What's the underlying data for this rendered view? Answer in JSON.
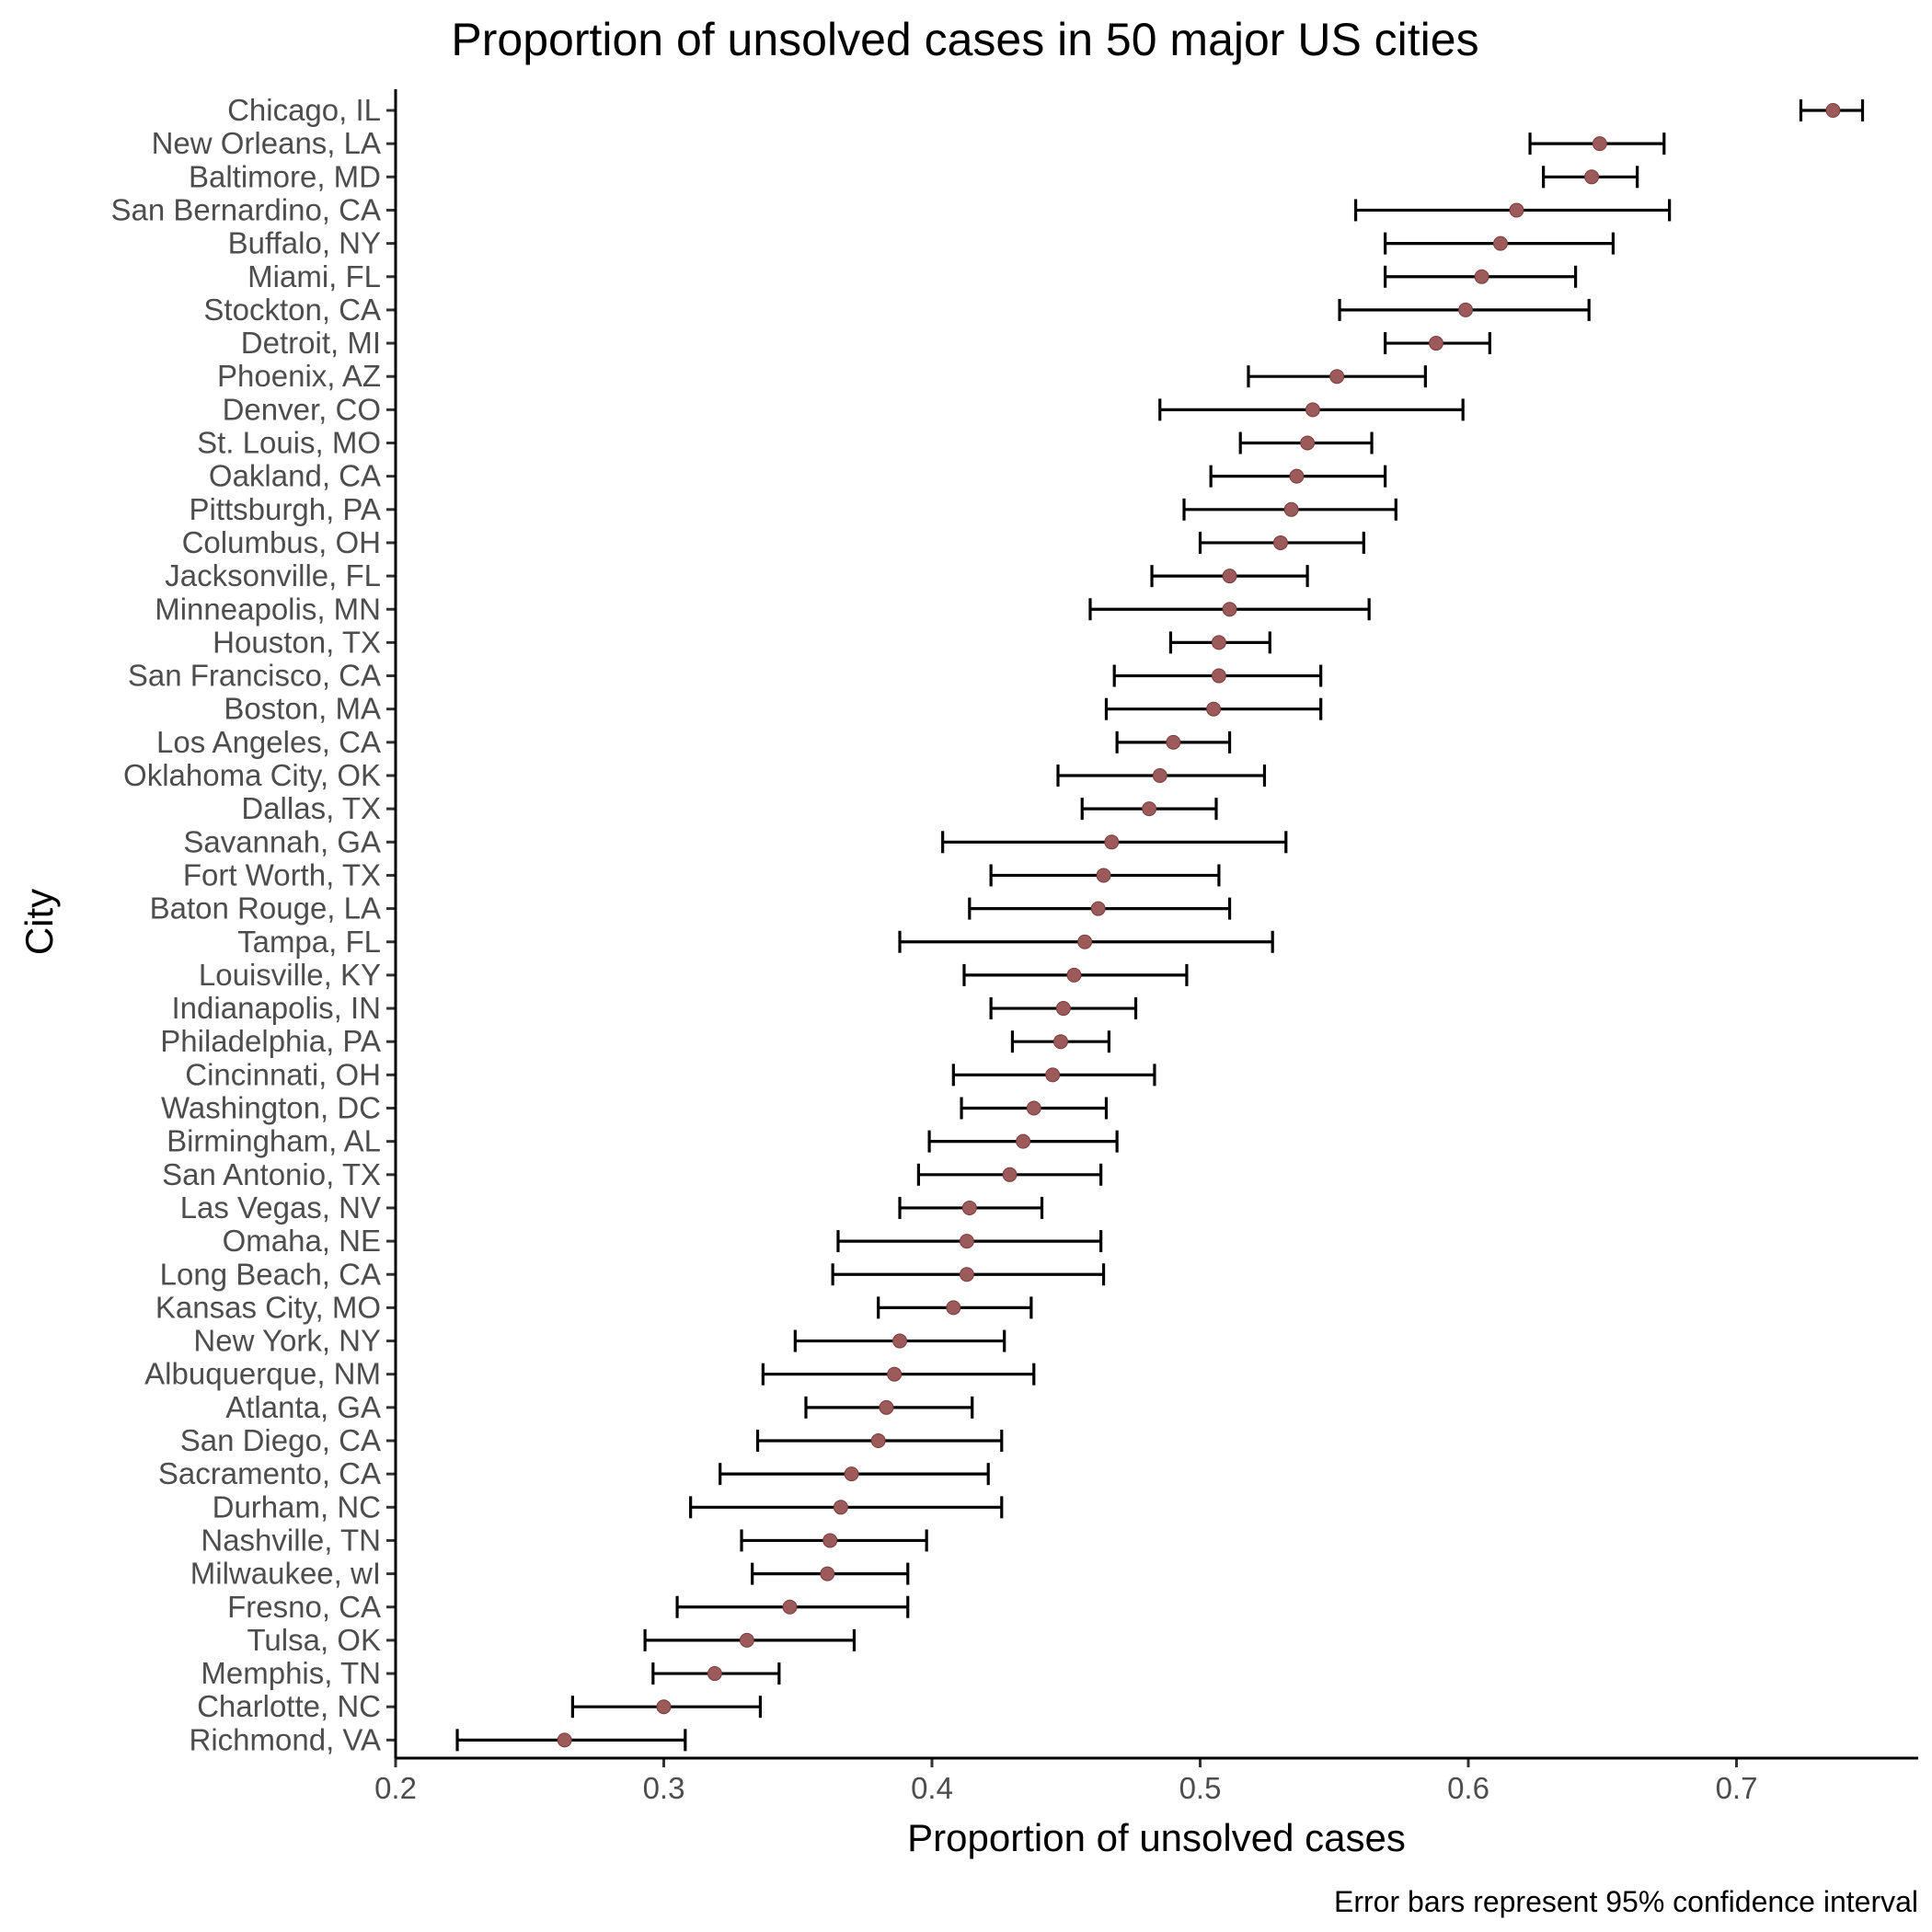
{
  "chart_data": {
    "type": "scatter",
    "title": "Proportion of unsolved cases in 50 major US cities",
    "xlabel": "Proportion of unsolved cases",
    "ylabel": "City",
    "caption": "Error bars represent 95% confidence interval",
    "xlim": [
      0.2,
      0.77
    ],
    "xticks": [
      0.2,
      0.3,
      0.4,
      0.5,
      0.6,
      0.7
    ],
    "grid": false,
    "legend": "none",
    "point_color": "#9d5a5a",
    "errorbar_color": "#000000",
    "points": [
      {
        "city": "Chicago, IL",
        "estimate": 0.736,
        "low": 0.724,
        "high": 0.747
      },
      {
        "city": "New Orleans, LA",
        "estimate": 0.649,
        "low": 0.623,
        "high": 0.673
      },
      {
        "city": "Baltimore, MD",
        "estimate": 0.646,
        "low": 0.628,
        "high": 0.663
      },
      {
        "city": "San Bernardino, CA",
        "estimate": 0.618,
        "low": 0.558,
        "high": 0.675
      },
      {
        "city": "Buffalo, NY",
        "estimate": 0.612,
        "low": 0.569,
        "high": 0.654
      },
      {
        "city": "Miami, FL",
        "estimate": 0.605,
        "low": 0.569,
        "high": 0.64
      },
      {
        "city": "Stockton, CA",
        "estimate": 0.599,
        "low": 0.552,
        "high": 0.645
      },
      {
        "city": "Detroit, MI",
        "estimate": 0.588,
        "low": 0.569,
        "high": 0.608
      },
      {
        "city": "Phoenix, AZ",
        "estimate": 0.551,
        "low": 0.518,
        "high": 0.584
      },
      {
        "city": "Denver, CO",
        "estimate": 0.542,
        "low": 0.485,
        "high": 0.598
      },
      {
        "city": "St. Louis, MO",
        "estimate": 0.54,
        "low": 0.515,
        "high": 0.564
      },
      {
        "city": "Oakland, CA",
        "estimate": 0.536,
        "low": 0.504,
        "high": 0.569
      },
      {
        "city": "Pittsburgh, PA",
        "estimate": 0.534,
        "low": 0.494,
        "high": 0.573
      },
      {
        "city": "Columbus, OH",
        "estimate": 0.53,
        "low": 0.5,
        "high": 0.561
      },
      {
        "city": "Jacksonville, FL",
        "estimate": 0.511,
        "low": 0.482,
        "high": 0.54
      },
      {
        "city": "Minneapolis, MN",
        "estimate": 0.511,
        "low": 0.459,
        "high": 0.563
      },
      {
        "city": "Houston, TX",
        "estimate": 0.507,
        "low": 0.489,
        "high": 0.526
      },
      {
        "city": "San Francisco, CA",
        "estimate": 0.507,
        "low": 0.468,
        "high": 0.545
      },
      {
        "city": "Boston, MA",
        "estimate": 0.505,
        "low": 0.465,
        "high": 0.545
      },
      {
        "city": "Los Angeles, CA",
        "estimate": 0.49,
        "low": 0.469,
        "high": 0.511
      },
      {
        "city": "Oklahoma City, OK",
        "estimate": 0.485,
        "low": 0.447,
        "high": 0.524
      },
      {
        "city": "Dallas, TX",
        "estimate": 0.481,
        "low": 0.456,
        "high": 0.506
      },
      {
        "city": "Savannah, GA",
        "estimate": 0.467,
        "low": 0.404,
        "high": 0.532
      },
      {
        "city": "Fort Worth, TX",
        "estimate": 0.464,
        "low": 0.422,
        "high": 0.507
      },
      {
        "city": "Baton Rouge, LA",
        "estimate": 0.462,
        "low": 0.414,
        "high": 0.511
      },
      {
        "city": "Tampa, FL",
        "estimate": 0.457,
        "low": 0.388,
        "high": 0.527
      },
      {
        "city": "Louisville, KY",
        "estimate": 0.453,
        "low": 0.412,
        "high": 0.495
      },
      {
        "city": "Indianapolis, IN",
        "estimate": 0.449,
        "low": 0.422,
        "high": 0.476
      },
      {
        "city": "Philadelphia, PA",
        "estimate": 0.448,
        "low": 0.43,
        "high": 0.466
      },
      {
        "city": "Cincinnati, OH",
        "estimate": 0.445,
        "low": 0.408,
        "high": 0.483
      },
      {
        "city": "Washington, DC",
        "estimate": 0.438,
        "low": 0.411,
        "high": 0.465
      },
      {
        "city": "Birmingham, AL",
        "estimate": 0.434,
        "low": 0.399,
        "high": 0.469
      },
      {
        "city": "San Antonio, TX",
        "estimate": 0.429,
        "low": 0.395,
        "high": 0.463
      },
      {
        "city": "Las Vegas, NV",
        "estimate": 0.414,
        "low": 0.388,
        "high": 0.441
      },
      {
        "city": "Omaha, NE",
        "estimate": 0.413,
        "low": 0.365,
        "high": 0.463
      },
      {
        "city": "Long Beach, CA",
        "estimate": 0.413,
        "low": 0.363,
        "high": 0.464
      },
      {
        "city": "Kansas City, MO",
        "estimate": 0.408,
        "low": 0.38,
        "high": 0.437
      },
      {
        "city": "New York, NY",
        "estimate": 0.388,
        "low": 0.349,
        "high": 0.427
      },
      {
        "city": "Albuquerque, NM",
        "estimate": 0.386,
        "low": 0.337,
        "high": 0.438
      },
      {
        "city": "Atlanta, GA",
        "estimate": 0.383,
        "low": 0.353,
        "high": 0.415
      },
      {
        "city": "San Diego, CA",
        "estimate": 0.38,
        "low": 0.335,
        "high": 0.426
      },
      {
        "city": "Sacramento, CA",
        "estimate": 0.37,
        "low": 0.321,
        "high": 0.421
      },
      {
        "city": "Durham, NC",
        "estimate": 0.366,
        "low": 0.31,
        "high": 0.426
      },
      {
        "city": "Nashville, TN",
        "estimate": 0.362,
        "low": 0.329,
        "high": 0.398
      },
      {
        "city": "Milwaukee, wI",
        "estimate": 0.361,
        "low": 0.333,
        "high": 0.391
      },
      {
        "city": "Fresno, CA",
        "estimate": 0.347,
        "low": 0.305,
        "high": 0.391
      },
      {
        "city": "Tulsa, OK",
        "estimate": 0.331,
        "low": 0.293,
        "high": 0.371
      },
      {
        "city": "Memphis, TN",
        "estimate": 0.319,
        "low": 0.296,
        "high": 0.343
      },
      {
        "city": "Charlotte, NC",
        "estimate": 0.3,
        "low": 0.266,
        "high": 0.336
      },
      {
        "city": "Richmond, VA",
        "estimate": 0.263,
        "low": 0.223,
        "high": 0.308
      }
    ]
  }
}
